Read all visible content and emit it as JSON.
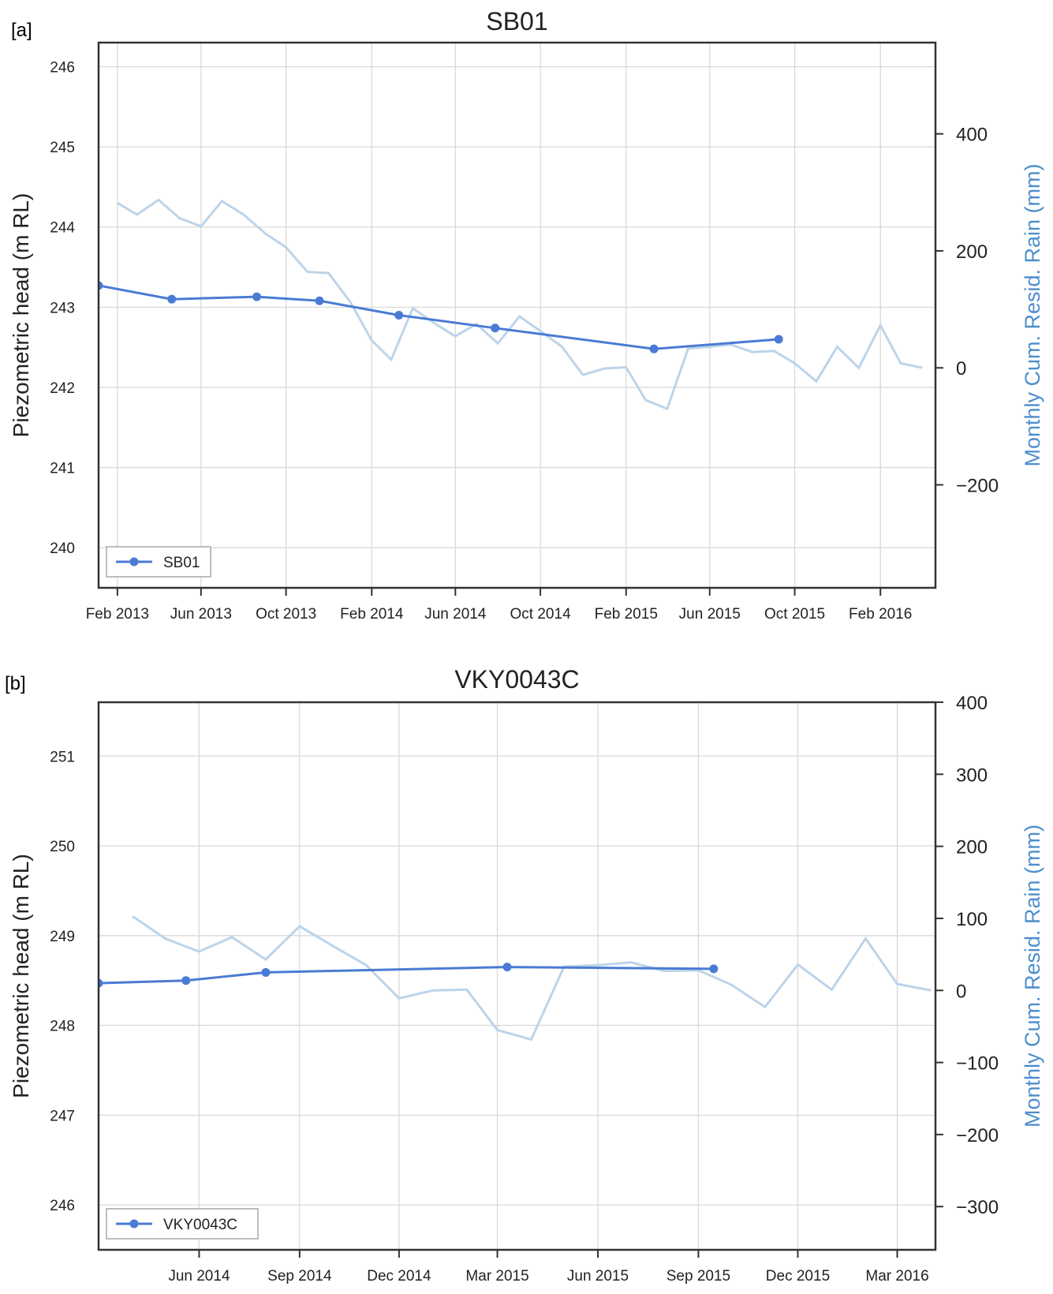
{
  "figure": {
    "panels": [
      {
        "label": "[a]"
      },
      {
        "label": "[b]"
      }
    ]
  },
  "colors": {
    "head_line": "#4a7bd4",
    "rain_line": "#bcd4ea",
    "rain_axis_label": "#4d8ecb",
    "grid": "#d9d9d9",
    "frame": "#333333"
  },
  "chart_data": [
    {
      "type": "line",
      "title": "SB01",
      "ylabel": "Piezometric head (m RL)",
      "ylabel_right": "Monthly Cum. Resid. Rain (mm)",
      "x_range": [
        "2013-01-05",
        "2016-04-20"
      ],
      "ylim": [
        239.5,
        246.3
      ],
      "ylim_right": [
        -376,
        556
      ],
      "x_ticks": [
        {
          "date": "2013-02-01",
          "label": "Feb 2013"
        },
        {
          "date": "2013-06-01",
          "label": "Jun 2013"
        },
        {
          "date": "2013-10-01",
          "label": "Oct 2013"
        },
        {
          "date": "2014-02-01",
          "label": "Feb 2014"
        },
        {
          "date": "2014-06-01",
          "label": "Jun 2014"
        },
        {
          "date": "2014-10-01",
          "label": "Oct 2014"
        },
        {
          "date": "2015-02-01",
          "label": "Feb 2015"
        },
        {
          "date": "2015-06-01",
          "label": "Jun 2015"
        },
        {
          "date": "2015-10-01",
          "label": "Oct 2015"
        },
        {
          "date": "2016-02-01",
          "label": "Feb 2016"
        }
      ],
      "y_ticks": [
        240,
        241,
        242,
        243,
        244,
        245,
        246
      ],
      "y_ticks_right": [
        {
          "value": -200,
          "label": "−200"
        },
        {
          "value": 0,
          "label": "0"
        },
        {
          "value": 200,
          "label": "200"
        },
        {
          "value": 400,
          "label": "400"
        }
      ],
      "grid": true,
      "legend": {
        "position": "bottom-left",
        "entries": [
          "SB01"
        ]
      },
      "series": [
        {
          "name": "SB01",
          "axis": "left",
          "marker": "circle",
          "points": [
            {
              "x": "2013-01-05",
              "y": 243.27
            },
            {
              "x": "2013-04-20",
              "y": 243.1
            },
            {
              "x": "2013-08-20",
              "y": 243.13
            },
            {
              "x": "2013-11-18",
              "y": 243.08
            },
            {
              "x": "2014-03-12",
              "y": 242.9
            },
            {
              "x": "2014-07-28",
              "y": 242.74
            },
            {
              "x": "2015-03-13",
              "y": 242.48
            },
            {
              "x": "2015-09-08",
              "y": 242.6
            }
          ]
        },
        {
          "axis": "right",
          "points": [
            {
              "x": "2013-02-01",
              "y": 282
            },
            {
              "x": "2013-03-01",
              "y": 262
            },
            {
              "x": "2013-04-01",
              "y": 287
            },
            {
              "x": "2013-05-01",
              "y": 256
            },
            {
              "x": "2013-06-01",
              "y": 242
            },
            {
              "x": "2013-07-01",
              "y": 285
            },
            {
              "x": "2013-08-01",
              "y": 262
            },
            {
              "x": "2013-09-01",
              "y": 230
            },
            {
              "x": "2013-10-01",
              "y": 206
            },
            {
              "x": "2013-11-01",
              "y": 164
            },
            {
              "x": "2013-12-01",
              "y": 162
            },
            {
              "x": "2014-01-01",
              "y": 113
            },
            {
              "x": "2014-02-01",
              "y": 47
            },
            {
              "x": "2014-03-01",
              "y": 14
            },
            {
              "x": "2014-04-01",
              "y": 102
            },
            {
              "x": "2014-05-01",
              "y": 77
            },
            {
              "x": "2014-06-01",
              "y": 54
            },
            {
              "x": "2014-07-01",
              "y": 75
            },
            {
              "x": "2014-08-01",
              "y": 42
            },
            {
              "x": "2014-09-01",
              "y": 88
            },
            {
              "x": "2014-10-01",
              "y": 63
            },
            {
              "x": "2014-11-01",
              "y": 36
            },
            {
              "x": "2014-12-01",
              "y": -12
            },
            {
              "x": "2015-01-01",
              "y": -1
            },
            {
              "x": "2015-02-01",
              "y": 1
            },
            {
              "x": "2015-03-01",
              "y": -55
            },
            {
              "x": "2015-04-01",
              "y": -70
            },
            {
              "x": "2015-05-01",
              "y": 33
            },
            {
              "x": "2015-06-01",
              "y": 36
            },
            {
              "x": "2015-07-01",
              "y": 40
            },
            {
              "x": "2015-08-01",
              "y": 27
            },
            {
              "x": "2015-09-01",
              "y": 29
            },
            {
              "x": "2015-10-01",
              "y": 8
            },
            {
              "x": "2015-11-01",
              "y": -23
            },
            {
              "x": "2015-12-01",
              "y": 36
            },
            {
              "x": "2016-01-01",
              "y": 0
            },
            {
              "x": "2016-02-01",
              "y": 73
            },
            {
              "x": "2016-03-01",
              "y": 8
            },
            {
              "x": "2016-04-01",
              "y": 0
            }
          ]
        }
      ]
    },
    {
      "type": "line",
      "title": "VKY0043C",
      "ylabel": "Piezometric head (m RL)",
      "ylabel_right": "Monthly Cum. Resid. Rain (mm)",
      "x_range": [
        "2014-03-01",
        "2016-04-05"
      ],
      "ylim": [
        245.5,
        251.6
      ],
      "ylim_right": [
        -360,
        400
      ],
      "x_ticks": [
        {
          "date": "2014-06-01",
          "label": "Jun 2014"
        },
        {
          "date": "2014-09-01",
          "label": "Sep 2014"
        },
        {
          "date": "2014-12-01",
          "label": "Dec 2014"
        },
        {
          "date": "2015-03-01",
          "label": "Mar 2015"
        },
        {
          "date": "2015-06-01",
          "label": "Jun 2015"
        },
        {
          "date": "2015-09-01",
          "label": "Sep 2015"
        },
        {
          "date": "2015-12-01",
          "label": "Dec 2015"
        },
        {
          "date": "2016-03-01",
          "label": "Mar 2016"
        }
      ],
      "y_ticks": [
        246,
        247,
        248,
        249,
        250,
        251
      ],
      "y_ticks_right": [
        {
          "value": -300,
          "label": "−300"
        },
        {
          "value": -200,
          "label": "−200"
        },
        {
          "value": -100,
          "label": "−100"
        },
        {
          "value": 0,
          "label": "0"
        },
        {
          "value": 100,
          "label": "100"
        },
        {
          "value": 200,
          "label": "200"
        },
        {
          "value": 300,
          "label": "300"
        },
        {
          "value": 400,
          "label": "400"
        }
      ],
      "grid": true,
      "legend": {
        "position": "bottom-left",
        "entries": [
          "VKY0043C"
        ]
      },
      "series": [
        {
          "name": "VKY0043C",
          "axis": "left",
          "marker": "circle",
          "points": [
            {
              "x": "2014-03-01",
              "y": 248.47
            },
            {
              "x": "2014-05-20",
              "y": 248.5
            },
            {
              "x": "2014-08-01",
              "y": 248.59
            },
            {
              "x": "2015-03-10",
              "y": 248.65
            },
            {
              "x": "2015-09-15",
              "y": 248.63
            }
          ]
        },
        {
          "axis": "right",
          "points": [
            {
              "x": "2014-04-01",
              "y": 103
            },
            {
              "x": "2014-05-01",
              "y": 72
            },
            {
              "x": "2014-06-01",
              "y": 54
            },
            {
              "x": "2014-07-01",
              "y": 74
            },
            {
              "x": "2014-08-01",
              "y": 43
            },
            {
              "x": "2014-09-01",
              "y": 89
            },
            {
              "x": "2014-10-01",
              "y": 62
            },
            {
              "x": "2014-11-01",
              "y": 35
            },
            {
              "x": "2014-12-01",
              "y": -11
            },
            {
              "x": "2015-01-01",
              "y": 0
            },
            {
              "x": "2015-02-01",
              "y": 1
            },
            {
              "x": "2015-03-01",
              "y": -55
            },
            {
              "x": "2015-04-01",
              "y": -68
            },
            {
              "x": "2015-05-01",
              "y": 33
            },
            {
              "x": "2015-06-01",
              "y": 35
            },
            {
              "x": "2015-07-01",
              "y": 39
            },
            {
              "x": "2015-08-01",
              "y": 27
            },
            {
              "x": "2015-09-01",
              "y": 28
            },
            {
              "x": "2015-10-01",
              "y": 8
            },
            {
              "x": "2015-11-01",
              "y": -23
            },
            {
              "x": "2015-12-01",
              "y": 36
            },
            {
              "x": "2016-01-01",
              "y": 1
            },
            {
              "x": "2016-02-01",
              "y": 72
            },
            {
              "x": "2016-03-01",
              "y": 9
            },
            {
              "x": "2016-04-01",
              "y": 0
            }
          ]
        }
      ]
    }
  ]
}
